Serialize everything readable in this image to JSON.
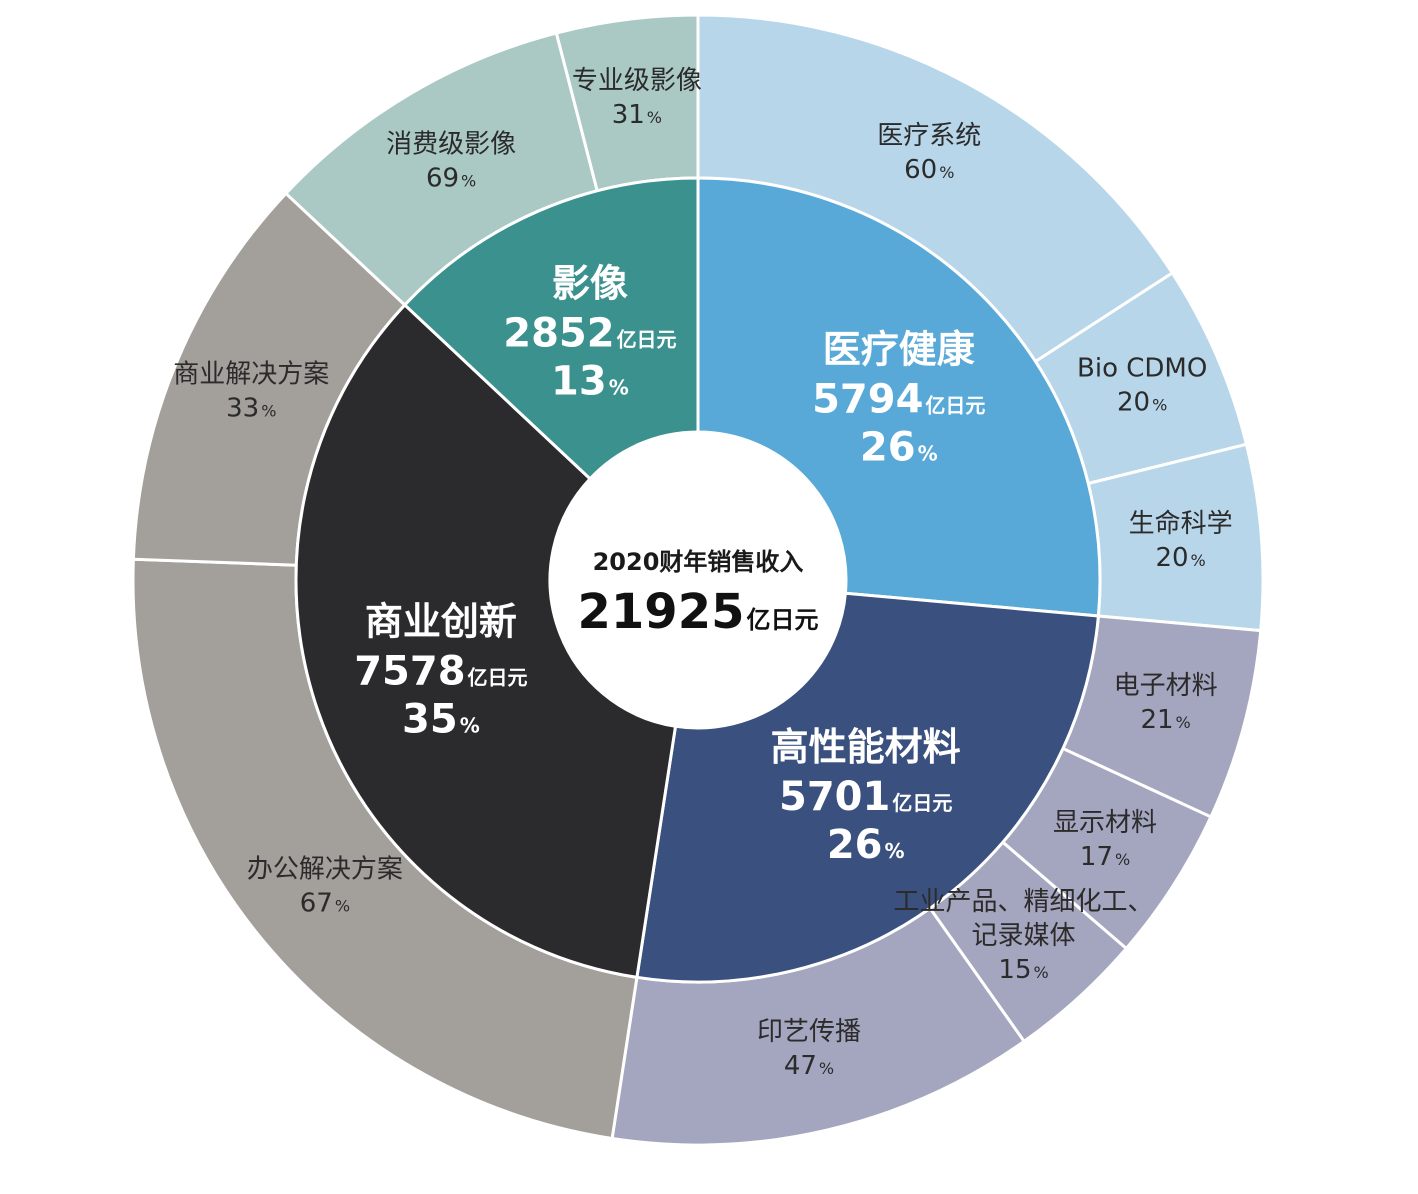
{
  "chart_data": {
    "type": "sunburst",
    "center": {
      "title": "2020财年销售收入",
      "value": "21925",
      "unit": "亿日元"
    },
    "unit_label": "亿日元",
    "percent_sign": "%",
    "segments": [
      {
        "name": "医疗健康",
        "value": 5794,
        "percent": 26,
        "color": "#58a9d8",
        "children": [
          {
            "name": "医疗系统",
            "percent": 60,
            "color": "#b8d6ea"
          },
          {
            "name": "Bio CDMO",
            "percent": 20,
            "color": "#b8d6ea"
          },
          {
            "name": "生命科学",
            "percent": 20,
            "color": "#b8d6ea"
          }
        ]
      },
      {
        "name": "高性能材料",
        "value": 5701,
        "percent": 26,
        "color": "#3a507f",
        "children": [
          {
            "name": "电子材料",
            "percent": 21,
            "color": "#a4a6bf"
          },
          {
            "name": "显示材料",
            "percent": 17,
            "color": "#a4a6bf"
          },
          {
            "name": "工业产品、精细化工、记录媒体",
            "percent": 15,
            "color": "#a4a6bf"
          },
          {
            "name": "印艺传播",
            "percent": 47,
            "color": "#a4a6bf"
          }
        ]
      },
      {
        "name": "商业创新",
        "value": 7578,
        "percent": 35,
        "color": "#2b2b2d",
        "children": [
          {
            "name": "办公解决方案",
            "percent": 67,
            "color": "#a39f9b"
          },
          {
            "name": "商业解决方案",
            "percent": 33,
            "color": "#a39f9b"
          }
        ]
      },
      {
        "name": "影像",
        "value": 2852,
        "percent": 13,
        "color": "#3b918e",
        "children": [
          {
            "name": "消费级影像",
            "percent": 69,
            "color": "#aac9c4"
          },
          {
            "name": "专业级影像",
            "percent": 31,
            "color": "#aac9c4"
          }
        ]
      }
    ]
  }
}
